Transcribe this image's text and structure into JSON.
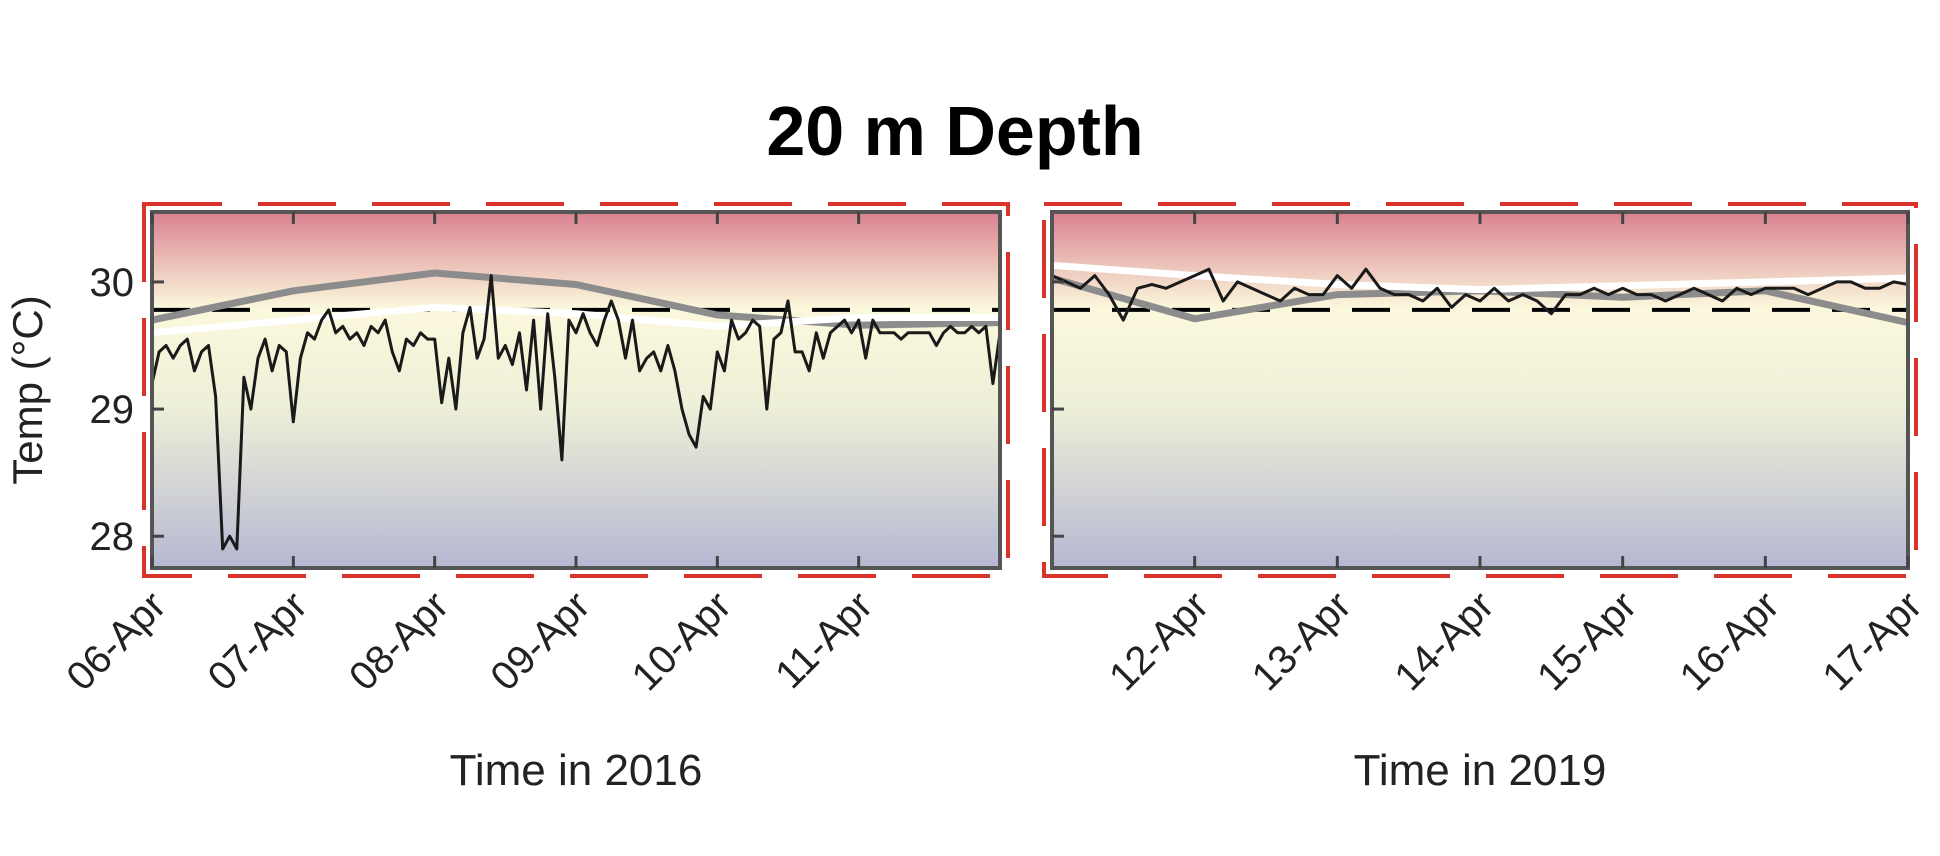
{
  "chart_data": {
    "type": "line",
    "title": "20 m Depth",
    "ylabel": "Temp (°C)",
    "ylim": [
      27.75,
      30.55
    ],
    "yticks": [
      28,
      29,
      30
    ],
    "grid": false,
    "colors": {
      "observed": "#1a1a1a",
      "series_gray": "#8c8c8c",
      "series_white": "#ffffff",
      "threshold": "#000000",
      "frame_red": "#d9332b",
      "gradient_top": "#d9818f",
      "gradient_mid": "#fbf8dc",
      "gradient_bottom": "#b5b8d2"
    },
    "panels": [
      {
        "xlabel": "Time in 2016",
        "xlim": [
          "2016-04-06",
          "2016-04-12"
        ],
        "tick_labels": [
          "06-Apr",
          "07-Apr",
          "08-Apr",
          "09-Apr",
          "10-Apr",
          "11-Apr"
        ],
        "threshold": 29.78,
        "series": [
          {
            "x": [
              "2016-04-06",
              "2016-04-07",
              "2016-04-08",
              "2016-04-09",
              "2016-04-10",
              "2016-04-11",
              "2016-04-12"
            ],
            "values": [
              29.7,
              29.93,
              30.07,
              29.98,
              29.74,
              29.66,
              29.68
            ]
          },
          {
            "x": [
              "2016-04-06",
              "2016-04-07",
              "2016-04-08",
              "2016-04-09",
              "2016-04-10",
              "2016-04-11",
              "2016-04-12"
            ],
            "values": [
              29.6,
              29.7,
              29.8,
              29.75,
              29.65,
              29.72,
              29.72
            ]
          },
          {
            "x": [
              0.0,
              0.05,
              0.1,
              0.15,
              0.2,
              0.25,
              0.3,
              0.35,
              0.4,
              0.45,
              0.5,
              0.55,
              0.6,
              0.65,
              0.7,
              0.75,
              0.8,
              0.85,
              0.9,
              0.95,
              1.0,
              1.05,
              1.1,
              1.15,
              1.2,
              1.25,
              1.3,
              1.35,
              1.4,
              1.45,
              1.5,
              1.55,
              1.6,
              1.65,
              1.7,
              1.75,
              1.8,
              1.85,
              1.9,
              1.95,
              2.0,
              2.05,
              2.1,
              2.15,
              2.2,
              2.25,
              2.3,
              2.35,
              2.4,
              2.45,
              2.5,
              2.55,
              2.6,
              2.65,
              2.7,
              2.75,
              2.8,
              2.85,
              2.9,
              2.95,
              3.0,
              3.05,
              3.1,
              3.15,
              3.2,
              3.25,
              3.3,
              3.35,
              3.4,
              3.45,
              3.5,
              3.55,
              3.6,
              3.65,
              3.7,
              3.75,
              3.8,
              3.85,
              3.9,
              3.95,
              4.0,
              4.05,
              4.1,
              4.15,
              4.2,
              4.25,
              4.3,
              4.35,
              4.4,
              4.45,
              4.5,
              4.55,
              4.6,
              4.65,
              4.7,
              4.75,
              4.8,
              4.85,
              4.9,
              4.95,
              5.0,
              5.05,
              5.1,
              5.15,
              5.2,
              5.25,
              5.3,
              5.35,
              5.4,
              5.45,
              5.5,
              5.55,
              5.6,
              5.65,
              5.7,
              5.75,
              5.8,
              5.85,
              5.9,
              5.95,
              6.0
            ],
            "values": [
              29.2,
              29.45,
              29.5,
              29.4,
              29.5,
              29.55,
              29.3,
              29.45,
              29.5,
              29.1,
              27.9,
              28.0,
              27.9,
              29.25,
              29.0,
              29.4,
              29.55,
              29.3,
              29.5,
              29.45,
              28.9,
              29.4,
              29.6,
              29.55,
              29.7,
              29.78,
              29.6,
              29.65,
              29.55,
              29.6,
              29.5,
              29.65,
              29.6,
              29.7,
              29.45,
              29.3,
              29.55,
              29.5,
              29.6,
              29.55,
              29.55,
              29.05,
              29.4,
              29.0,
              29.6,
              29.8,
              29.4,
              29.55,
              30.05,
              29.4,
              29.5,
              29.35,
              29.6,
              29.15,
              29.7,
              29.0,
              29.75,
              29.25,
              28.6,
              29.7,
              29.6,
              29.75,
              29.6,
              29.5,
              29.7,
              29.85,
              29.7,
              29.4,
              29.7,
              29.3,
              29.4,
              29.45,
              29.3,
              29.5,
              29.3,
              29.0,
              28.8,
              28.7,
              29.1,
              29.0,
              29.45,
              29.3,
              29.7,
              29.55,
              29.6,
              29.7,
              29.65,
              29.0,
              29.55,
              29.6,
              29.85,
              29.45,
              29.45,
              29.3,
              29.6,
              29.4,
              29.6,
              29.65,
              29.7,
              29.6,
              29.7,
              29.4,
              29.7,
              29.6,
              29.6,
              29.6,
              29.55,
              29.6,
              29.6,
              29.6,
              29.6,
              29.5,
              29.6,
              29.65,
              29.6,
              29.6,
              29.65,
              29.6,
              29.65,
              29.2,
              29.6
            ]
          }
        ]
      },
      {
        "xlabel": "Time in 2019",
        "xlim": [
          "2019-04-11",
          "2019-04-17"
        ],
        "tick_labels": [
          "12-Apr",
          "13-Apr",
          "14-Apr",
          "15-Apr",
          "16-Apr",
          "17-Apr"
        ],
        "threshold": 29.78,
        "series": [
          {
            "x": [
              "2019-04-11",
              "2019-04-12",
              "2019-04-13",
              "2019-04-14",
              "2019-04-15",
              "2019-04-16",
              "2019-04-17"
            ],
            "values": [
              30.03,
              29.71,
              29.9,
              29.93,
              29.88,
              29.93,
              29.68
            ]
          },
          {
            "x": [
              "2019-04-11",
              "2019-04-12",
              "2019-04-13",
              "2019-04-14",
              "2019-04-15",
              "2019-04-16",
              "2019-04-17"
            ],
            "values": [
              30.13,
              30.05,
              29.98,
              29.94,
              29.97,
              30.0,
              30.03
            ]
          },
          {
            "x": [
              0.0,
              0.1,
              0.2,
              0.3,
              0.4,
              0.5,
              0.6,
              0.7,
              0.8,
              0.9,
              1.0,
              1.1,
              1.2,
              1.3,
              1.4,
              1.5,
              1.6,
              1.7,
              1.8,
              1.9,
              2.0,
              2.1,
              2.2,
              2.3,
              2.4,
              2.5,
              2.6,
              2.7,
              2.8,
              2.9,
              3.0,
              3.1,
              3.2,
              3.3,
              3.4,
              3.5,
              3.6,
              3.7,
              3.8,
              3.9,
              4.0,
              4.1,
              4.2,
              4.3,
              4.4,
              4.5,
              4.6,
              4.7,
              4.8,
              4.9,
              5.0,
              5.1,
              5.2,
              5.3,
              5.4,
              5.5,
              5.6,
              5.7,
              5.8,
              5.9,
              6.0
            ],
            "values": [
              30.05,
              30.0,
              29.95,
              30.05,
              29.9,
              29.7,
              29.95,
              29.98,
              29.95,
              30.0,
              30.05,
              30.1,
              29.85,
              30.0,
              29.95,
              29.9,
              29.85,
              29.95,
              29.9,
              29.9,
              30.05,
              29.95,
              30.1,
              29.95,
              29.9,
              29.9,
              29.85,
              29.95,
              29.8,
              29.9,
              29.85,
              29.95,
              29.85,
              29.9,
              29.85,
              29.75,
              29.9,
              29.9,
              29.95,
              29.9,
              29.95,
              29.9,
              29.9,
              29.85,
              29.9,
              29.95,
              29.9,
              29.85,
              29.95,
              29.9,
              29.95,
              29.95,
              29.95,
              29.9,
              29.95,
              30.0,
              30.0,
              29.95,
              29.95,
              30.0,
              29.98
            ]
          }
        ]
      }
    ]
  }
}
